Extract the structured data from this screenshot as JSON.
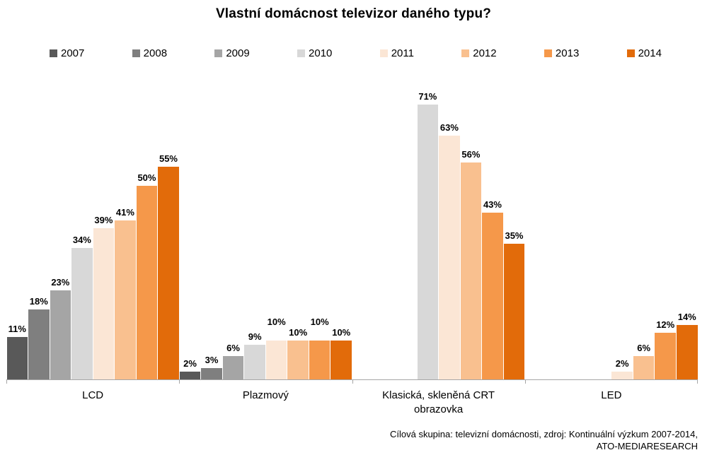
{
  "title": "Vlastní domácnost televizor daného typu?",
  "source": {
    "line1": "Cílová skupina: televizní domácnosti, zdroj: Kontinuální výzkum 2007-2014,",
    "line2": "ATO-MEDIARESEARCH"
  },
  "chart_data": {
    "type": "bar",
    "title": "Vlastní domácnost televizor daného typu?",
    "categories": [
      "LCD",
      "Plazmový",
      "Klasická, skleněná CRT obrazovka",
      "LED"
    ],
    "series": [
      {
        "name": "2007",
        "color": "#595959",
        "values": [
          11,
          2,
          null,
          null
        ]
      },
      {
        "name": "2008",
        "color": "#7f7f7f",
        "values": [
          18,
          3,
          null,
          null
        ]
      },
      {
        "name": "2009",
        "color": "#a5a5a5",
        "values": [
          23,
          6,
          null,
          null
        ]
      },
      {
        "name": "2010",
        "color": "#d8d8d8",
        "values": [
          34,
          9,
          71,
          null
        ]
      },
      {
        "name": "2011",
        "color": "#fbe6d5",
        "values": [
          39,
          10,
          63,
          2
        ]
      },
      {
        "name": "2012",
        "color": "#f9c08f",
        "values": [
          41,
          10,
          56,
          6
        ]
      },
      {
        "name": "2013",
        "color": "#f5984a",
        "values": [
          50,
          10,
          43,
          12
        ]
      },
      {
        "name": "2014",
        "color": "#e26b0a",
        "values": [
          55,
          10,
          35,
          14
        ]
      }
    ],
    "value_suffix": "%",
    "ylim": [
      0,
      76
    ],
    "grid": false,
    "legend_position": "top",
    "axis_color": "#a6a6a6"
  }
}
